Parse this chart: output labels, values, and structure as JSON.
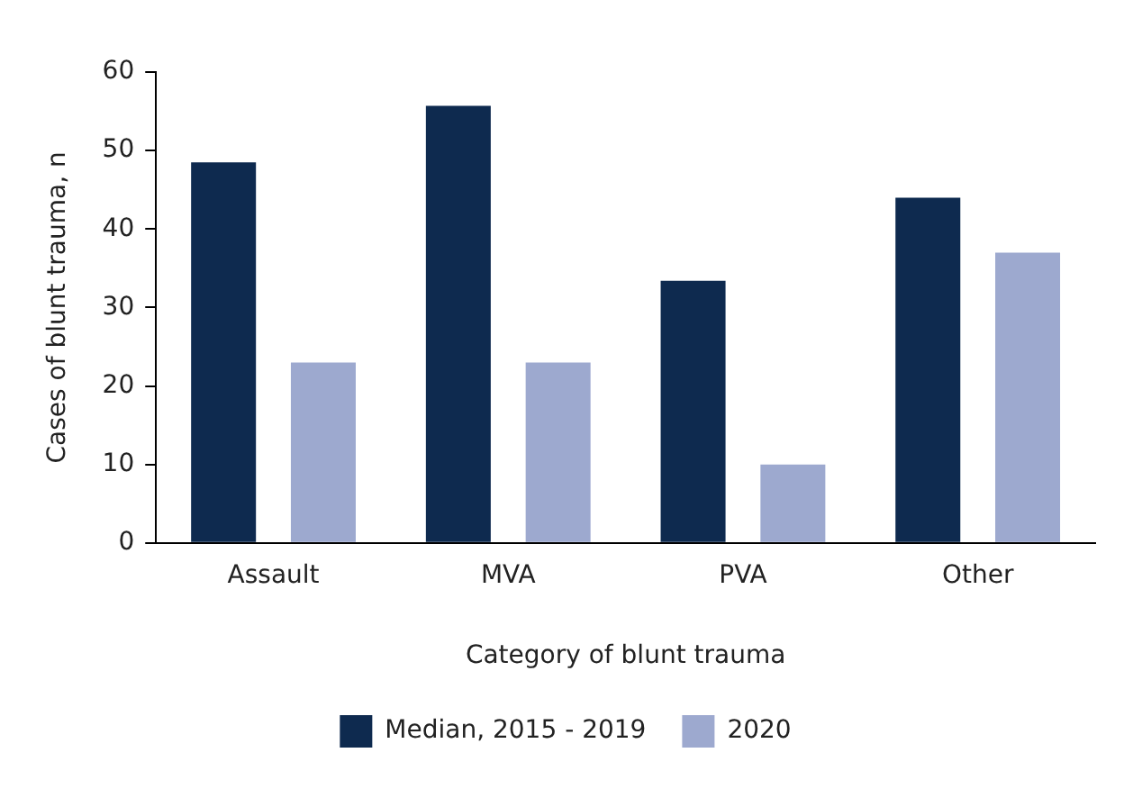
{
  "chart_data": {
    "type": "bar",
    "xlabel": "Category of blunt trauma",
    "ylabel": "Cases of blunt trauma, n",
    "categories": [
      "Assault",
      "MVA",
      "PVA",
      "Other"
    ],
    "series": [
      {
        "name": "Median, 2015 - 2019",
        "color": "#0e2a4f",
        "values": [
          48.5,
          55.7,
          33.4,
          44
        ]
      },
      {
        "name": "2020",
        "color": "#9da9cf",
        "values": [
          23,
          23,
          10,
          37
        ]
      }
    ],
    "ylim": [
      0,
      60
    ],
    "yticks": [
      0,
      10,
      20,
      30,
      40,
      50,
      60
    ],
    "grid": false,
    "legend": "bottom"
  }
}
